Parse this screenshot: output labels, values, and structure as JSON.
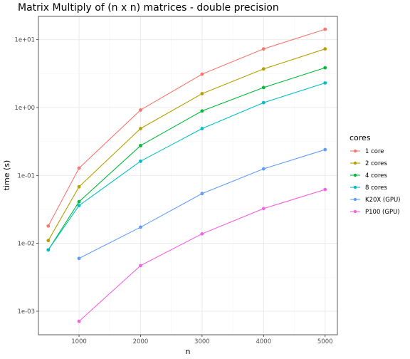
{
  "chart_data": {
    "type": "line",
    "title": "Matrix Multiply of (n x n) matrices - double precision",
    "xlabel": "n",
    "ylabel": "time (s)",
    "xlim": [
      340,
      5200
    ],
    "ylim": [
      0.00045,
      22
    ],
    "yscale": "log10",
    "x_ticks": [
      1000,
      2000,
      3000,
      4000,
      5000
    ],
    "x_tick_labels": [
      "1000",
      "2000",
      "3000",
      "4000",
      "5000"
    ],
    "y_ticks": [
      0.001,
      0.01,
      0.1,
      1,
      10
    ],
    "y_tick_labels": [
      "1e-03",
      "1e-02",
      "1e-01",
      "1e+00",
      "1e+01"
    ],
    "grid": true,
    "legend": {
      "title": "cores",
      "placement": "right"
    },
    "series": [
      {
        "name": "1 core",
        "color": "#F8766D",
        "x": [
          500,
          1000,
          2000,
          3000,
          4000,
          5000
        ],
        "y": [
          0.018,
          0.128,
          0.92,
          3.1,
          7.3,
          14.2
        ]
      },
      {
        "name": "2 cores",
        "color": "#B79F00",
        "x": [
          500,
          1000,
          2000,
          3000,
          4000,
          5000
        ],
        "y": [
          0.011,
          0.068,
          0.49,
          1.6,
          3.7,
          7.3
        ]
      },
      {
        "name": "4 cores",
        "color": "#00BA38",
        "x": [
          500,
          1000,
          2000,
          3000,
          4000,
          5000
        ],
        "y": [
          0.008,
          0.041,
          0.275,
          0.89,
          1.97,
          3.85
        ]
      },
      {
        "name": "8 cores",
        "color": "#00BFC4",
        "x": [
          500,
          1000,
          2000,
          3000,
          4000,
          5000
        ],
        "y": [
          0.008,
          0.036,
          0.162,
          0.49,
          1.18,
          2.3
        ]
      },
      {
        "name": "K20X (GPU)",
        "color": "#619CFF",
        "x": [
          1000,
          2000,
          3000,
          4000,
          5000
        ],
        "y": [
          0.006,
          0.0173,
          0.054,
          0.125,
          0.24
        ]
      },
      {
        "name": "P100 (GPU)",
        "color": "#F564E3",
        "x": [
          1000,
          2000,
          3000,
          4000,
          5000
        ],
        "y": [
          0.00071,
          0.0047,
          0.0138,
          0.0325,
          0.062
        ]
      }
    ]
  }
}
